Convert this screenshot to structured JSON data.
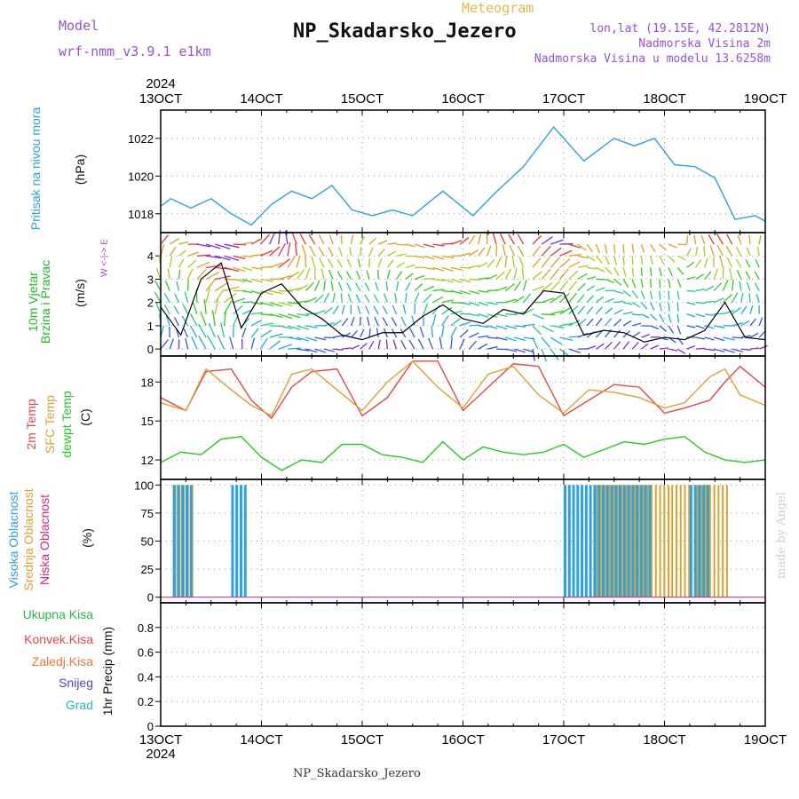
{
  "header": {
    "model_label": "Model",
    "model_value": "wrf-nmm_v3.9.1  e1km",
    "title": "NP_Skadarsko_Jezero",
    "meteogram": "Meteogram",
    "lonlat": "lon,lat (19.15E, 42.2812N)",
    "altitude": "Nadmorska Visina 2m",
    "model_altitude": "Nadmorska Visina u modelu 13.6258m"
  },
  "footer": {
    "station": "NP_Skadarsko_Jezero",
    "credit": "made by Angel"
  },
  "time_axis": {
    "year": "2024",
    "ticks": [
      "13OCT",
      "14OCT",
      "15OCT",
      "16OCT",
      "17OCT",
      "18OCT",
      "19OCT"
    ]
  },
  "panel_labels": {
    "pressure": {
      "title": "Pritisak na nivou mora",
      "unit": "(hPa)"
    },
    "wind": {
      "title1": "10m Vjetar",
      "title2": "Brzina i Pravac",
      "unit": "(m/s)",
      "compass": "W  <-|->  E"
    },
    "temp": {
      "t2m": "2m Temp",
      "tsfc": "SFC Temp",
      "dewpt": "dewpt Temp",
      "unit": "(C)"
    },
    "cloud": {
      "high": "Visoka Oblacnost",
      "mid": "Srednja Oblacnost",
      "low": "Niska Oblacnost",
      "unit": "(%)"
    },
    "precip": {
      "total": "Ukupna Kisa",
      "conv": "Konvek.Kisa",
      "frozen": "Zaledj.Kisa",
      "snow": "Snijeg",
      "graupel": "Grad",
      "axis": "1hr Precip (mm)"
    }
  },
  "colors": {
    "pressure": "#2aa3e0",
    "t2m": "#ee4444",
    "tsfc": "#e0a030",
    "dewpt": "#22cc22",
    "cloud_high": "#2aa3e0",
    "cloud_mid": "#e0a030",
    "cloud_low": "#e0208a",
    "precip_total": "#22bb44",
    "precip_conv": "#ee4444",
    "precip_frozen": "#ee7733",
    "precip_snow": "#4444dd",
    "precip_graupel": "#22bbbb",
    "wind_label": "#22bb22",
    "compass": "#aa44cc"
  },
  "chart_data": [
    {
      "type": "line",
      "panel": "pressure",
      "x_unit": "days since 13OCT 00Z",
      "ylim": [
        1017,
        1023.5
      ],
      "yticks": [
        "1018",
        "1020",
        "1022"
      ],
      "series": [
        {
          "x": [
            0,
            0.1,
            0.3,
            0.5,
            0.7,
            0.9,
            1.1,
            1.3,
            1.5,
            1.7,
            1.9,
            2.1,
            2.3,
            2.5,
            2.8,
            3.1,
            3.3,
            3.6,
            3.9,
            4.2,
            4.5,
            4.7,
            4.9,
            5.1,
            5.3,
            5.5,
            5.7,
            5.9,
            6.0
          ],
          "y": [
            1018.4,
            1018.8,
            1018.3,
            1018.8,
            1018.0,
            1017.4,
            1018.5,
            1019.2,
            1018.8,
            1019.5,
            1018.2,
            1017.9,
            1018.2,
            1017.9,
            1019.2,
            1017.9,
            1019.0,
            1020.5,
            1022.6,
            1020.8,
            1022.0,
            1021.6,
            1022.0,
            1020.6,
            1020.5,
            1019.9,
            1017.7,
            1017.9,
            1017.6
          ]
        }
      ]
    },
    {
      "type": "line",
      "panel": "wind",
      "ylim": [
        -0.3,
        5.0
      ],
      "yticks": [
        "0",
        "1",
        "2",
        "3",
        "4"
      ],
      "series": [
        {
          "x": [
            0,
            0.2,
            0.4,
            0.6,
            0.8,
            1.0,
            1.2,
            1.4,
            1.6,
            1.8,
            2.0,
            2.2,
            2.4,
            2.6,
            2.8,
            3.0,
            3.2,
            3.4,
            3.6,
            3.8,
            4.0,
            4.2,
            4.4,
            4.6,
            4.8,
            5.0,
            5.2,
            5.4,
            5.6,
            5.8,
            6.0
          ],
          "y": [
            1.8,
            0.6,
            3.0,
            3.7,
            0.9,
            2.4,
            2.8,
            1.8,
            1.3,
            0.6,
            0.4,
            0.7,
            0.7,
            1.4,
            1.9,
            1.3,
            1.1,
            1.7,
            1.5,
            2.5,
            2.4,
            0.6,
            0.8,
            0.7,
            0.3,
            0.5,
            0.4,
            0.8,
            2.0,
            0.5,
            0.4
          ]
        }
      ]
    },
    {
      "type": "line",
      "panel": "temperature",
      "ylim": [
        10.5,
        20.0
      ],
      "yticks": [
        "12",
        "15",
        "18"
      ],
      "series": [
        {
          "name": "2m Temp",
          "x": [
            0,
            0.25,
            0.45,
            0.7,
            0.9,
            1.1,
            1.3,
            1.5,
            1.75,
            2.0,
            2.25,
            2.5,
            2.75,
            3.0,
            3.25,
            3.5,
            3.75,
            4.0,
            4.25,
            4.5,
            4.75,
            5.0,
            5.2,
            5.45,
            5.6,
            5.75,
            6.0
          ],
          "y": [
            16.8,
            15.8,
            18.8,
            19.0,
            16.6,
            15.2,
            17.6,
            18.8,
            19.0,
            15.4,
            16.8,
            19.6,
            19.6,
            15.8,
            17.6,
            19.4,
            19.2,
            15.4,
            16.6,
            17.8,
            17.6,
            15.6,
            16.0,
            16.6,
            18.0,
            19.2,
            17.6
          ]
        },
        {
          "name": "SFC Temp",
          "x": [
            0,
            0.25,
            0.45,
            0.7,
            0.9,
            1.1,
            1.3,
            1.5,
            1.75,
            2.0,
            2.25,
            2.5,
            2.75,
            3.0,
            3.25,
            3.5,
            3.75,
            4.0,
            4.25,
            4.5,
            4.75,
            5.0,
            5.2,
            5.45,
            5.6,
            5.75,
            6.0
          ],
          "y": [
            16.4,
            15.8,
            19.0,
            17.4,
            16.2,
            15.4,
            18.6,
            19.0,
            17.4,
            15.8,
            18.0,
            19.6,
            17.6,
            16.0,
            18.6,
            19.2,
            17.0,
            15.6,
            17.4,
            17.2,
            16.8,
            16.0,
            16.4,
            18.4,
            19.0,
            17.0,
            16.2
          ]
        },
        {
          "name": "dewpt Temp",
          "x": [
            0,
            0.2,
            0.4,
            0.6,
            0.8,
            1.0,
            1.2,
            1.4,
            1.6,
            1.8,
            2.0,
            2.2,
            2.4,
            2.6,
            2.8,
            3.0,
            3.2,
            3.4,
            3.6,
            3.8,
            4.0,
            4.2,
            4.4,
            4.6,
            4.8,
            5.0,
            5.2,
            5.4,
            5.6,
            5.8,
            6.0
          ],
          "y": [
            11.8,
            12.6,
            12.4,
            13.6,
            13.8,
            12.2,
            11.2,
            12.0,
            11.8,
            13.2,
            13.2,
            12.4,
            12.2,
            11.8,
            13.4,
            12.0,
            13.0,
            12.6,
            12.4,
            12.6,
            13.2,
            12.2,
            12.8,
            13.4,
            13.2,
            13.6,
            13.8,
            12.6,
            12.0,
            11.8,
            12.0
          ]
        }
      ]
    },
    {
      "type": "bar",
      "panel": "cloud",
      "ylim": [
        -5,
        105
      ],
      "yticks": [
        "0",
        "25",
        "50",
        "75",
        "100"
      ],
      "high_groups": [
        [
          0.12,
          0.32
        ],
        [
          0.7,
          0.85
        ],
        [
          4.0,
          4.85
        ],
        [
          5.25,
          5.45
        ]
      ],
      "mid_groups": [
        [
          0.12,
          0.32
        ],
        [
          4.3,
          5.05
        ],
        [
          5.05,
          5.25
        ],
        [
          5.3,
          5.6
        ]
      ],
      "low_value": 0
    },
    {
      "type": "bar",
      "panel": "precip",
      "ylim": [
        0,
        1.0
      ],
      "yticks": [
        "0",
        "0.2",
        "0.4",
        "0.6",
        "0.8"
      ],
      "values": []
    }
  ]
}
